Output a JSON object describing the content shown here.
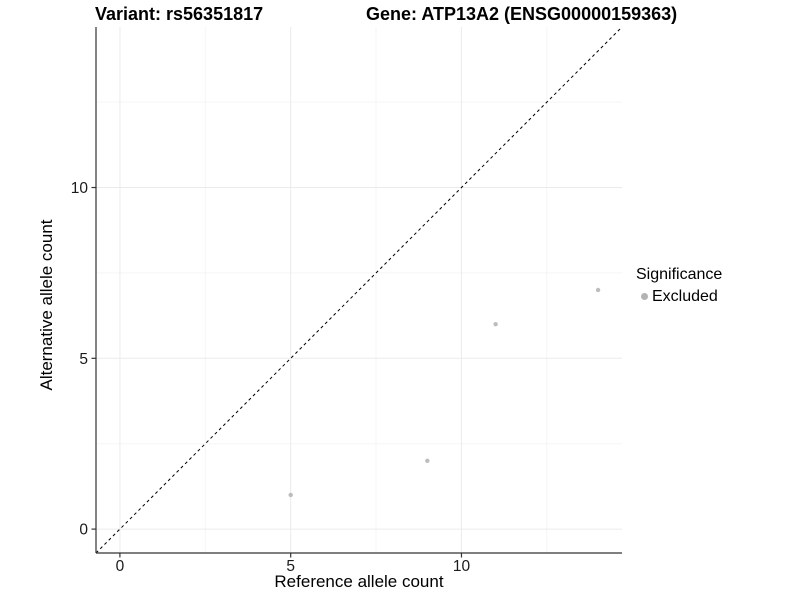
{
  "chart_data": {
    "type": "scatter",
    "titles": {
      "left": "Variant: rs56351817",
      "right": "Gene: ATP13A2 (ENSG00000159363)"
    },
    "xlabel": "Reference allele count",
    "ylabel": "Alternative allele count",
    "xlim": [
      -0.7,
      14.7
    ],
    "ylim": [
      -0.7,
      14.7
    ],
    "x_ticks": [
      0,
      5,
      10
    ],
    "y_ticks": [
      0,
      5,
      10
    ],
    "x_minor_ticks": [
      2.5,
      7.5,
      12.5
    ],
    "y_minor_ticks": [
      2.5,
      7.5,
      12.5
    ],
    "grid": true,
    "identity_line": {
      "style": "dashed",
      "color": "#000000"
    },
    "series": [
      {
        "name": "Excluded",
        "color": "#bdbdbd",
        "points": [
          [
            5,
            1
          ],
          [
            9,
            2
          ],
          [
            11,
            6
          ],
          [
            14,
            7
          ]
        ]
      }
    ],
    "legend": {
      "position": "right",
      "title": "Significance",
      "entries": [
        {
          "label": "Excluded",
          "color": "#b3b3b3"
        }
      ]
    },
    "colors": {
      "grid_major": "#ebebeb",
      "grid_minor": "#f5f5f5",
      "axis": "#333333",
      "tick_text": "#1a1a1a",
      "background": "#ffffff"
    }
  }
}
